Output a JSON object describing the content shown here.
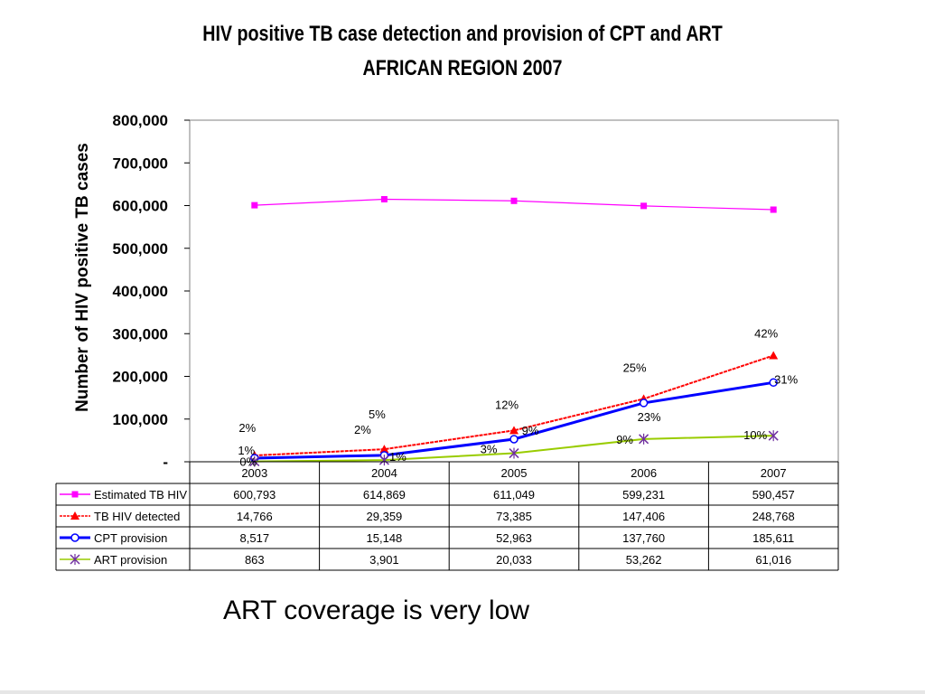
{
  "slide": {
    "caption": "ART coverage is very low"
  },
  "chart_data": {
    "type": "line",
    "title_line1": "HIV positive TB case detection and provision of CPT and ART",
    "title_line2": "AFRICAN REGION 2007",
    "xlabel": "",
    "ylabel": "Number of HIV positive TB cases",
    "categories": [
      "2003",
      "2004",
      "2005",
      "2006",
      "2007"
    ],
    "ylim": [
      0,
      800000
    ],
    "yticks": [
      {
        "value": 0,
        "label": "-"
      },
      {
        "value": 100000,
        "label": "100,000"
      },
      {
        "value": 200000,
        "label": "200,000"
      },
      {
        "value": 300000,
        "label": "300,000"
      },
      {
        "value": 400000,
        "label": "400,000"
      },
      {
        "value": 500000,
        "label": "500,000"
      },
      {
        "value": 600000,
        "label": "600,000"
      },
      {
        "value": 700000,
        "label": "700,000"
      },
      {
        "value": 800000,
        "label": "800,000"
      }
    ],
    "grid": false,
    "legend": "data table below chart",
    "series": [
      {
        "name": "Estimated TB HIV",
        "color": "#ff00ff",
        "marker": "square",
        "values": [
          600793,
          614869,
          611049,
          599231,
          590457
        ],
        "table_values": [
          "600,793",
          "614,869",
          "611,049",
          "599,231",
          "590,457"
        ],
        "point_labels": []
      },
      {
        "name": "TB HIV detected",
        "color": "#ff0000",
        "marker": "triangle",
        "values": [
          14766,
          29359,
          73385,
          147406,
          248768
        ],
        "table_values": [
          "14,766",
          "29,359",
          "73,385",
          "147,406",
          "248,768"
        ],
        "point_labels": [
          "2%",
          "5%",
          "12%",
          "25%",
          "42%"
        ]
      },
      {
        "name": "CPT provision",
        "color": "#0000ff",
        "marker": "circle",
        "values": [
          8517,
          15148,
          52963,
          137760,
          185611
        ],
        "table_values": [
          "8,517",
          "15,148",
          "52,963",
          "137,760",
          "185,611"
        ],
        "point_labels": [
          "1%",
          "2%",
          "9%",
          "23%",
          "31%"
        ]
      },
      {
        "name": "ART provision",
        "color": "#99cc00",
        "marker": "x",
        "values": [
          863,
          3901,
          20033,
          53262,
          61016
        ],
        "table_values": [
          "863",
          "3,901",
          "20,033",
          "53,262",
          "61,016"
        ],
        "point_labels": [
          "0%",
          "1%",
          "3%",
          "9%",
          "10%"
        ]
      }
    ]
  }
}
